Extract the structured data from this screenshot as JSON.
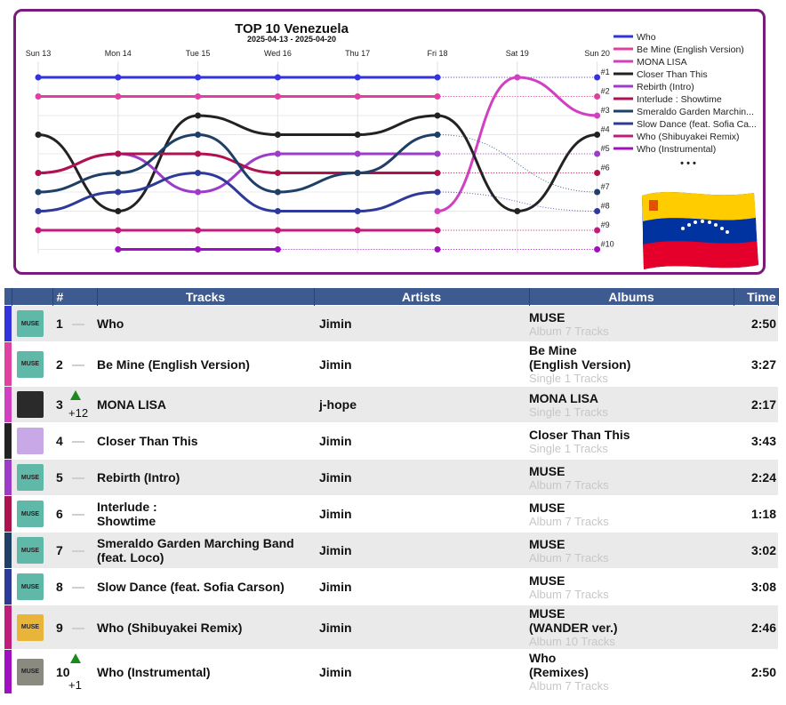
{
  "chart_data": {
    "type": "line",
    "title": "TOP 10 Venezuela",
    "subtitle": "2025-04-13 - 2025-04-20",
    "categories": [
      "Sun 13",
      "Mon 14",
      "Tue 15",
      "Wed 16",
      "Thu 17",
      "Fri 18",
      "Sat 19",
      "Sun 20"
    ],
    "rank_labels": [
      "#1",
      "#2",
      "#3",
      "#4",
      "#5",
      "#6",
      "#7",
      "#8",
      "#9",
      "#10"
    ],
    "y_axis": "rank (1 = top), reversed",
    "ylim": [
      1,
      10
    ],
    "grid": true,
    "legend_position": "right",
    "legend_more": "• • •",
    "series": [
      {
        "name": "Who",
        "color": "#3333dd",
        "values": [
          1,
          1,
          1,
          1,
          1,
          1,
          null,
          1
        ]
      },
      {
        "name": "Be Mine (English Version)",
        "color": "#e040a0",
        "values": [
          2,
          2,
          2,
          2,
          2,
          2,
          null,
          2
        ]
      },
      {
        "name": "MONA LISA",
        "color": "#d040c0",
        "values": [
          null,
          null,
          null,
          null,
          null,
          8,
          1,
          3
        ]
      },
      {
        "name": "Closer Than This",
        "color": "#222222",
        "values": [
          4,
          8,
          3,
          4,
          4,
          3,
          8,
          4
        ]
      },
      {
        "name": "Rebirth (Intro)",
        "color": "#9c3cc8",
        "values": [
          6,
          5,
          7,
          5,
          5,
          5,
          null,
          5
        ]
      },
      {
        "name": "Interlude : Showtime",
        "color": "#b0124f",
        "values": [
          6,
          5,
          5,
          6,
          6,
          6,
          null,
          6
        ]
      },
      {
        "name": "Smeraldo Garden Marching Band (feat. Loco)",
        "color": "#1f3f66",
        "values": [
          7,
          6,
          4,
          7,
          6,
          4,
          null,
          7
        ]
      },
      {
        "name": "Slow Dance (feat. Sofia Carson)",
        "color": "#2d3a9a",
        "values": [
          8,
          7,
          6,
          8,
          8,
          7,
          null,
          8
        ]
      },
      {
        "name": "Who (Shibuyakei Remix)",
        "color": "#c01c7a",
        "values": [
          9,
          9,
          9,
          9,
          9,
          9,
          null,
          9
        ]
      },
      {
        "name": "Who (Instrumental)",
        "color": "#a010c0",
        "values": [
          null,
          10,
          10,
          10,
          null,
          10,
          null,
          10
        ]
      }
    ],
    "legend_labels": [
      "Who",
      "Be Mine (English Version)",
      "MONA LISA",
      "Closer Than This",
      "Rebirth (Intro)",
      "Interlude : Showtime",
      "Smeraldo Garden Marchin...",
      "Slow Dance (feat. Sofia Ca...",
      "Who (Shibuyakei Remix)",
      "Who (Instrumental)"
    ]
  },
  "table": {
    "headers": {
      "rank": "#",
      "tracks": "Tracks",
      "artists": "Artists",
      "albums": "Albums",
      "time": "Time"
    },
    "rows": [
      {
        "rank": "1",
        "move": "",
        "track_lines": [
          "Who",
          ""
        ],
        "artist": "Jimin",
        "album_lines": [
          "MUSE",
          ""
        ],
        "album_meta": "Album 7 Tracks",
        "time": "2:50",
        "color": "#3333dd",
        "thumb": "#5fb8a8",
        "thumb_text": "MUSE"
      },
      {
        "rank": "2",
        "move": "",
        "track_lines": [
          "Be Mine (English Version)",
          ""
        ],
        "artist": "Jimin",
        "album_lines": [
          "Be Mine",
          "(English Version)"
        ],
        "album_meta": "Single 1 Tracks",
        "time": "3:27",
        "color": "#e040a0",
        "thumb": "#5fb8a8",
        "thumb_text": "MUSE"
      },
      {
        "rank": "3",
        "move": "+12",
        "track_lines": [
          "MONA LISA",
          ""
        ],
        "artist": "j-hope",
        "album_lines": [
          "MONA LISA",
          ""
        ],
        "album_meta": "Single 1 Tracks",
        "time": "2:17",
        "color": "#d040c0",
        "thumb": "#2a2a2a",
        "thumb_text": ""
      },
      {
        "rank": "4",
        "move": "",
        "track_lines": [
          "Closer Than This",
          ""
        ],
        "artist": "Jimin",
        "album_lines": [
          "Closer Than This",
          ""
        ],
        "album_meta": "Single 1 Tracks",
        "time": "3:43",
        "color": "#222222",
        "thumb": "#c9a8e8",
        "thumb_text": ""
      },
      {
        "rank": "5",
        "move": "",
        "track_lines": [
          "Rebirth (Intro)",
          ""
        ],
        "artist": "Jimin",
        "album_lines": [
          "MUSE",
          ""
        ],
        "album_meta": "Album 7 Tracks",
        "time": "2:24",
        "color": "#9c3cc8",
        "thumb": "#5fb8a8",
        "thumb_text": "MUSE"
      },
      {
        "rank": "6",
        "move": "",
        "track_lines": [
          "Interlude :",
          "Showtime"
        ],
        "artist": "Jimin",
        "album_lines": [
          "MUSE",
          ""
        ],
        "album_meta": "Album 7 Tracks",
        "time": "1:18",
        "color": "#b0124f",
        "thumb": "#5fb8a8",
        "thumb_text": "MUSE"
      },
      {
        "rank": "7",
        "move": "",
        "track_lines": [
          "Smeraldo Garden Marching Band",
          "(feat. Loco)"
        ],
        "artist": "Jimin",
        "album_lines": [
          "MUSE",
          ""
        ],
        "album_meta": "Album 7 Tracks",
        "time": "3:02",
        "color": "#1f3f66",
        "thumb": "#5fb8a8",
        "thumb_text": "MUSE"
      },
      {
        "rank": "8",
        "move": "",
        "track_lines": [
          "Slow Dance (feat. Sofia Carson)",
          ""
        ],
        "artist": "Jimin",
        "album_lines": [
          "MUSE",
          ""
        ],
        "album_meta": "Album 7 Tracks",
        "time": "3:08",
        "color": "#2d3a9a",
        "thumb": "#5fb8a8",
        "thumb_text": "MUSE"
      },
      {
        "rank": "9",
        "move": "",
        "track_lines": [
          "Who (Shibuyakei Remix)",
          ""
        ],
        "artist": "Jimin",
        "album_lines": [
          "MUSE",
          "(WANDER ver.)"
        ],
        "album_meta": "Album 10 Tracks",
        "time": "2:46",
        "color": "#c01c7a",
        "thumb": "#e8b43a",
        "thumb_text": "MUSE"
      },
      {
        "rank": "10",
        "move": "+1",
        "track_lines": [
          "Who (Instrumental)",
          ""
        ],
        "artist": "Jimin",
        "album_lines": [
          "Who",
          "(Remixes)"
        ],
        "album_meta": "Album 7 Tracks",
        "time": "2:50",
        "color": "#a010c0",
        "thumb": "#8a8a80",
        "thumb_text": "MUSE"
      }
    ]
  }
}
